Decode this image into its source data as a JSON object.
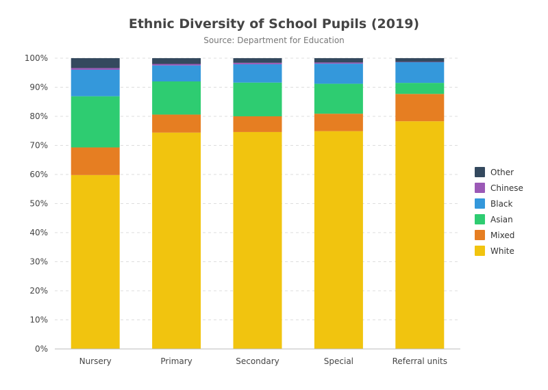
{
  "chart_data": {
    "type": "bar",
    "stacked": true,
    "title": "Ethnic Diversity of School Pupils (2019)",
    "subtitle": "Source: Department for Education",
    "categories": [
      "Nursery",
      "Primary",
      "Secondary",
      "Special",
      "Referral units"
    ],
    "ylim": [
      0,
      100
    ],
    "y_ticks": [
      "0%",
      "10%",
      "20%",
      "30%",
      "40%",
      "50%",
      "60%",
      "70%",
      "80%",
      "90%",
      "100%"
    ],
    "grid": true,
    "legend_position": "right",
    "series": [
      {
        "name": "White",
        "color": "#f1c40f",
        "values": [
          59.8,
          74.4,
          74.6,
          74.9,
          78.3
        ]
      },
      {
        "name": "Mixed",
        "color": "#e67e22",
        "values": [
          9.5,
          6.2,
          5.4,
          6.0,
          9.4
        ]
      },
      {
        "name": "Asian",
        "color": "#2ecc71",
        "values": [
          17.6,
          11.4,
          11.6,
          10.3,
          3.8
        ]
      },
      {
        "name": "Black",
        "color": "#3498db",
        "values": [
          9.1,
          5.5,
          6.3,
          6.9,
          7.1
        ]
      },
      {
        "name": "Chinese",
        "color": "#9b59b6",
        "values": [
          0.6,
          0.5,
          0.5,
          0.4,
          0.1
        ]
      },
      {
        "name": "Other",
        "color": "#34495e",
        "values": [
          3.4,
          2.0,
          1.6,
          1.5,
          1.3
        ]
      }
    ],
    "legend_order": [
      "Other",
      "Chinese",
      "Black",
      "Asian",
      "Mixed",
      "White"
    ]
  }
}
